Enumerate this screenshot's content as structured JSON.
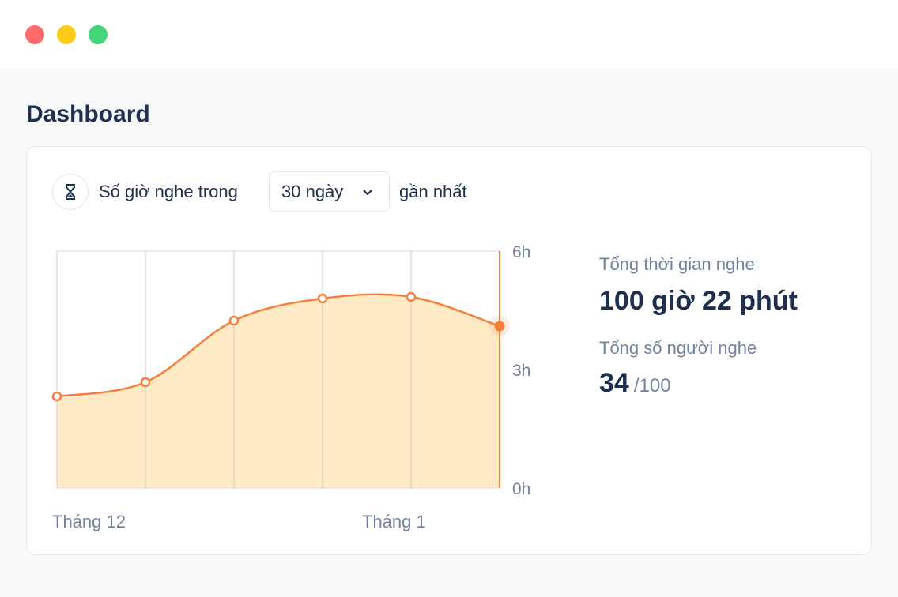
{
  "window": {
    "controls": [
      {
        "name": "close",
        "color": "#fe6b6b"
      },
      {
        "name": "minimize",
        "color": "#fbcc1a"
      },
      {
        "name": "maximize",
        "color": "#44d67a"
      }
    ]
  },
  "page_title": "Dashboard",
  "card": {
    "icon": "hourglass-icon",
    "prefix": "Số giờ nghe trong",
    "period_select": "30 ngày",
    "suffix": "gần nhất",
    "stats": {
      "total_time_label": "Tổng thời gian nghe",
      "total_time_value": "100 giờ 22 phút",
      "listeners_label": "Tổng số người nghe",
      "listeners_value": "34",
      "listeners_total": "/100"
    }
  },
  "chart_data": {
    "type": "area",
    "x": [
      1,
      2,
      3,
      4,
      5,
      6
    ],
    "values": [
      2.32,
      2.68,
      4.24,
      4.8,
      4.84,
      4.1
    ],
    "ylim": [
      0,
      6
    ],
    "y_ticks": [
      "0h",
      "3h",
      "6h"
    ],
    "x_tick_labels": [
      {
        "at": 1,
        "label": "Tháng 12"
      },
      {
        "at": 4.5,
        "label": "Tháng 1"
      }
    ],
    "highlighted_point": 6,
    "line_color": "#f57e3a",
    "fill_color": "#feeac4",
    "grid": "vertical"
  }
}
